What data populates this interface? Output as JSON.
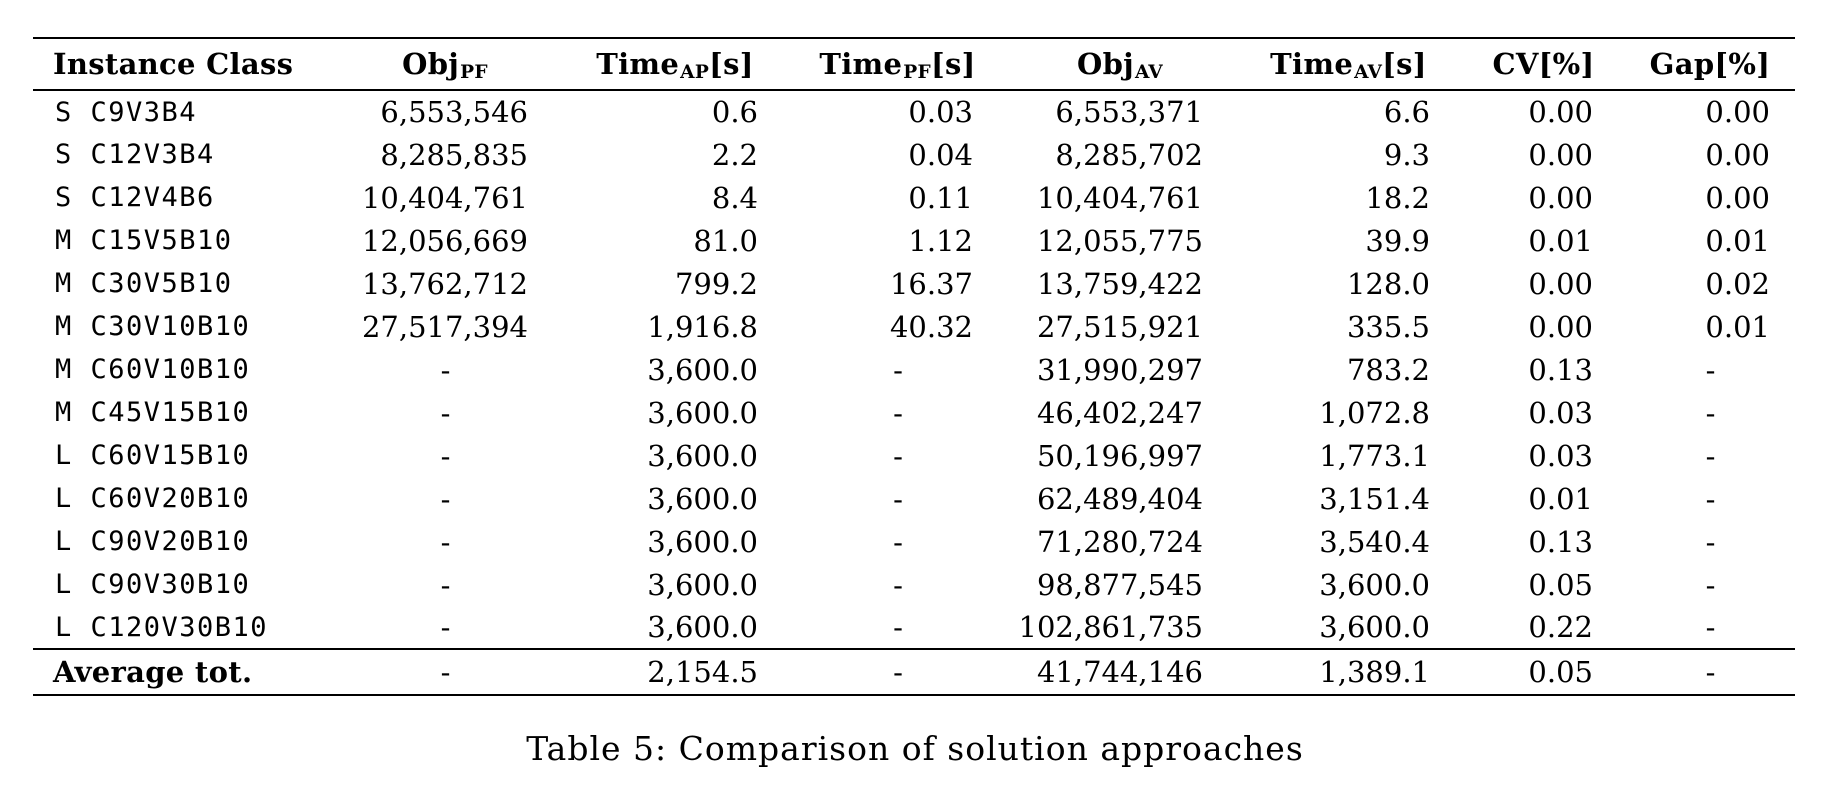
{
  "colors": {
    "text": "#000000",
    "background": "#ffffff",
    "rule": "#000000"
  },
  "caption": "Table 5: Comparison of solution approaches",
  "table": {
    "columns": [
      {
        "id": "instance",
        "label_main": "Instance Class",
        "sub": "",
        "suffix": "",
        "align": "left"
      },
      {
        "id": "obj_pf",
        "label_main": "Obj",
        "sub": "PF",
        "suffix": "",
        "align": "right"
      },
      {
        "id": "time_ap",
        "label_main": "Time",
        "sub": "AP",
        "suffix": "[s]",
        "align": "right"
      },
      {
        "id": "time_pf",
        "label_main": "Time",
        "sub": "PF",
        "suffix": "[s]",
        "align": "right"
      },
      {
        "id": "obj_av",
        "label_main": "Obj",
        "sub": "AV",
        "suffix": "",
        "align": "right"
      },
      {
        "id": "time_av",
        "label_main": "Time",
        "sub": "AV",
        "suffix": "[s]",
        "align": "right"
      },
      {
        "id": "cv",
        "label_main": "CV",
        "sub": "",
        "suffix": "[%]",
        "align": "right"
      },
      {
        "id": "gap",
        "label_main": "Gap",
        "sub": "",
        "suffix": "[%]",
        "align": "right"
      }
    ],
    "rows": [
      {
        "label": "S C9V3B4",
        "obj_pf": "6,553,546",
        "time_ap": "0.6",
        "time_pf": "0.03",
        "obj_av": "6,553,371",
        "time_av": "6.6",
        "cv": "0.00",
        "gap": "0.00"
      },
      {
        "label": "S C12V3B4",
        "obj_pf": "8,285,835",
        "time_ap": "2.2",
        "time_pf": "0.04",
        "obj_av": "8,285,702",
        "time_av": "9.3",
        "cv": "0.00",
        "gap": "0.00"
      },
      {
        "label": "S C12V4B6",
        "obj_pf": "10,404,761",
        "time_ap": "8.4",
        "time_pf": "0.11",
        "obj_av": "10,404,761",
        "time_av": "18.2",
        "cv": "0.00",
        "gap": "0.00"
      },
      {
        "label": "M C15V5B10",
        "obj_pf": "12,056,669",
        "time_ap": "81.0",
        "time_pf": "1.12",
        "obj_av": "12,055,775",
        "time_av": "39.9",
        "cv": "0.01",
        "gap": "0.01"
      },
      {
        "label": "M C30V5B10",
        "obj_pf": "13,762,712",
        "time_ap": "799.2",
        "time_pf": "16.37",
        "obj_av": "13,759,422",
        "time_av": "128.0",
        "cv": "0.00",
        "gap": "0.02"
      },
      {
        "label": "M C30V10B10",
        "obj_pf": "27,517,394",
        "time_ap": "1,916.8",
        "time_pf": "40.32",
        "obj_av": "27,515,921",
        "time_av": "335.5",
        "cv": "0.00",
        "gap": "0.01"
      },
      {
        "label": "M C60V10B10",
        "obj_pf": "-",
        "time_ap": "3,600.0",
        "time_pf": "-",
        "obj_av": "31,990,297",
        "time_av": "783.2",
        "cv": "0.13",
        "gap": "-"
      },
      {
        "label": "M C45V15B10",
        "obj_pf": "-",
        "time_ap": "3,600.0",
        "time_pf": "-",
        "obj_av": "46,402,247",
        "time_av": "1,072.8",
        "cv": "0.03",
        "gap": "-"
      },
      {
        "label": "L C60V15B10",
        "obj_pf": "-",
        "time_ap": "3,600.0",
        "time_pf": "-",
        "obj_av": "50,196,997",
        "time_av": "1,773.1",
        "cv": "0.03",
        "gap": "-"
      },
      {
        "label": "L C60V20B10",
        "obj_pf": "-",
        "time_ap": "3,600.0",
        "time_pf": "-",
        "obj_av": "62,489,404",
        "time_av": "3,151.4",
        "cv": "0.01",
        "gap": "-"
      },
      {
        "label": "L C90V20B10",
        "obj_pf": "-",
        "time_ap": "3,600.0",
        "time_pf": "-",
        "obj_av": "71,280,724",
        "time_av": "3,540.4",
        "cv": "0.13",
        "gap": "-"
      },
      {
        "label": "L C90V30B10",
        "obj_pf": "-",
        "time_ap": "3,600.0",
        "time_pf": "-",
        "obj_av": "98,877,545",
        "time_av": "3,600.0",
        "cv": "0.05",
        "gap": "-"
      },
      {
        "label": "L C120V30B10",
        "obj_pf": "-",
        "time_ap": "3,600.0",
        "time_pf": "-",
        "obj_av": "102,861,735",
        "time_av": "3,600.0",
        "cv": "0.22",
        "gap": "-"
      }
    ],
    "footer": {
      "label": "Average tot.",
      "obj_pf": "-",
      "time_ap": "2,154.5",
      "time_pf": "-",
      "obj_av": "41,744,146",
      "time_av": "1,389.1",
      "cv": "0.05",
      "gap": "-"
    }
  }
}
